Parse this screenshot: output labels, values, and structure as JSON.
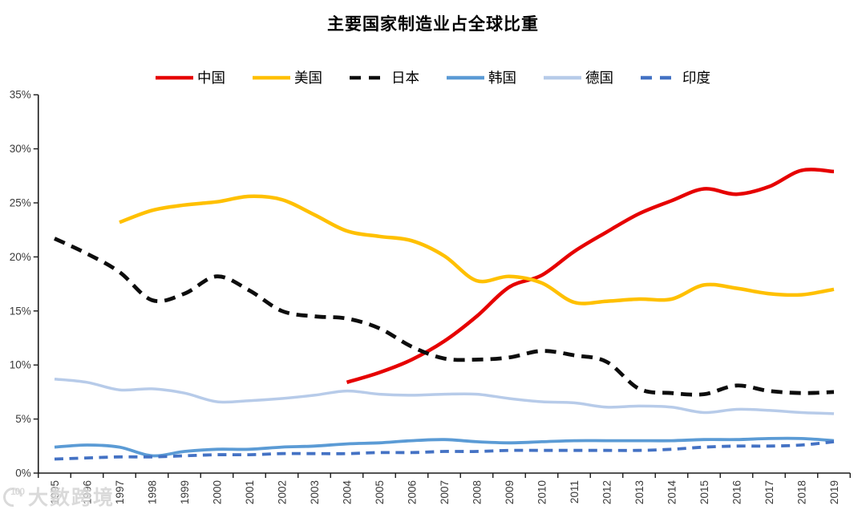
{
  "title": "主要国家制造业占全球比重",
  "watermark": {
    "logo_text": "100",
    "brand": "大数跨境"
  },
  "chart_data": {
    "type": "line",
    "title": "主要国家制造业占全球比重",
    "xlabel": "",
    "ylabel": "",
    "x_tick_labels": [
      "1995",
      "1996",
      "1997",
      "1998",
      "1999",
      "2000",
      "2001",
      "2002",
      "2003",
      "2004",
      "2005",
      "2006",
      "2007",
      "2008",
      "2009",
      "2010",
      "2011",
      "2012",
      "2013",
      "2014",
      "2015",
      "2016",
      "2017",
      "2018",
      "2019"
    ],
    "y_tick_labels": [
      "0%",
      "5%",
      "10%",
      "15%",
      "20%",
      "25%",
      "30%",
      "35%"
    ],
    "ylim": [
      0,
      35
    ],
    "y_tick_step": 5,
    "grid": false,
    "legend_position": "top",
    "axis_color": "#1a1a1a",
    "label_color": "#3a3a3a",
    "series": [
      {
        "key": "china",
        "name": "中国",
        "color": "#E60000",
        "dash": "solid",
        "width": 4.5,
        "values": [
          null,
          null,
          null,
          null,
          null,
          null,
          null,
          null,
          null,
          8.4,
          9.3,
          10.5,
          12.2,
          14.5,
          17.2,
          18.3,
          20.5,
          22.3,
          24.0,
          25.2,
          26.3,
          25.8,
          26.5,
          28.0,
          27.9
        ]
      },
      {
        "key": "usa",
        "name": "美国",
        "color": "#FFC000",
        "dash": "solid",
        "width": 4.5,
        "values": [
          null,
          null,
          23.2,
          24.3,
          24.8,
          25.1,
          25.6,
          25.3,
          23.9,
          22.4,
          21.9,
          21.5,
          20.1,
          17.8,
          18.2,
          17.6,
          15.8,
          15.9,
          16.1,
          16.1,
          17.4,
          17.1,
          16.6,
          16.5,
          17.0
        ]
      },
      {
        "key": "japan",
        "name": "日本",
        "color": "#0D0D0D",
        "dash": "dashed",
        "width": 4.8,
        "values": [
          21.7,
          20.3,
          18.6,
          16.0,
          16.6,
          18.2,
          16.9,
          15.0,
          14.5,
          14.3,
          13.4,
          11.7,
          10.6,
          10.5,
          10.7,
          11.3,
          10.9,
          10.3,
          7.8,
          7.4,
          7.3,
          8.1,
          7.6,
          7.4,
          7.5
        ]
      },
      {
        "key": "korea",
        "name": "韩国",
        "color": "#5B9BD5",
        "dash": "solid",
        "width": 3.8,
        "values": [
          2.4,
          2.6,
          2.4,
          1.6,
          2.0,
          2.2,
          2.2,
          2.4,
          2.5,
          2.7,
          2.8,
          3.0,
          3.1,
          2.9,
          2.8,
          2.9,
          3.0,
          3.0,
          3.0,
          3.0,
          3.1,
          3.1,
          3.2,
          3.2,
          3.0
        ]
      },
      {
        "key": "germany",
        "name": "德国",
        "color": "#B7CBE9",
        "dash": "solid",
        "width": 3.5,
        "values": [
          8.7,
          8.4,
          7.7,
          7.8,
          7.4,
          6.6,
          6.7,
          6.9,
          7.2,
          7.6,
          7.3,
          7.2,
          7.3,
          7.3,
          6.9,
          6.6,
          6.5,
          6.1,
          6.2,
          6.1,
          5.6,
          5.9,
          5.8,
          5.6,
          5.5
        ]
      },
      {
        "key": "india",
        "name": "印度",
        "color": "#4472C4",
        "dash": "dashed",
        "width": 3.8,
        "values": [
          1.3,
          1.4,
          1.5,
          1.5,
          1.6,
          1.7,
          1.7,
          1.8,
          1.8,
          1.8,
          1.9,
          1.9,
          2.0,
          2.0,
          2.1,
          2.1,
          2.1,
          2.1,
          2.1,
          2.2,
          2.4,
          2.5,
          2.5,
          2.6,
          2.9
        ]
      }
    ]
  }
}
